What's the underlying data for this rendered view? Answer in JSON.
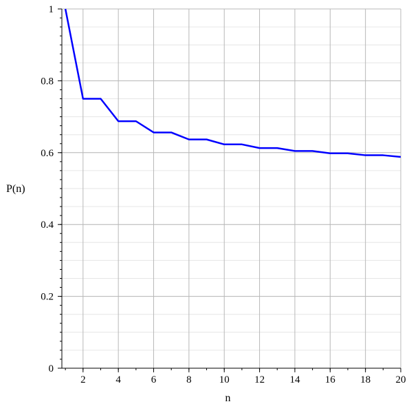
{
  "chart_data": {
    "type": "line",
    "title": "",
    "xlabel": "n",
    "ylabel": "P(n)",
    "xlim": [
      0.8,
      20
    ],
    "ylim": [
      0,
      1
    ],
    "x_ticks": [
      2,
      4,
      6,
      8,
      10,
      12,
      14,
      16,
      18,
      20
    ],
    "x_tick_labels": [
      "2",
      "4",
      "6",
      "8",
      "10",
      "12",
      "14",
      "16",
      "18",
      "20"
    ],
    "y_ticks": [
      0,
      0.2,
      0.4,
      0.6,
      0.8,
      1
    ],
    "y_tick_labels": [
      "0",
      "0.2",
      "0.4",
      "0.6",
      "0.8",
      "1"
    ],
    "grid": true,
    "line_color": "#0000ff",
    "series": [
      {
        "x": [
          1,
          2,
          3,
          4,
          5,
          6,
          7,
          8,
          9,
          10,
          11,
          12,
          13,
          14,
          15,
          16,
          17,
          18,
          19,
          20
        ],
        "values": [
          1,
          0.75,
          0.75,
          0.6875,
          0.6875,
          0.65625,
          0.65625,
          0.6367,
          0.6367,
          0.623,
          0.623,
          0.6128,
          0.6128,
          0.6047,
          0.6047,
          0.5982,
          0.5982,
          0.5928,
          0.5928,
          0.5881
        ]
      }
    ]
  }
}
